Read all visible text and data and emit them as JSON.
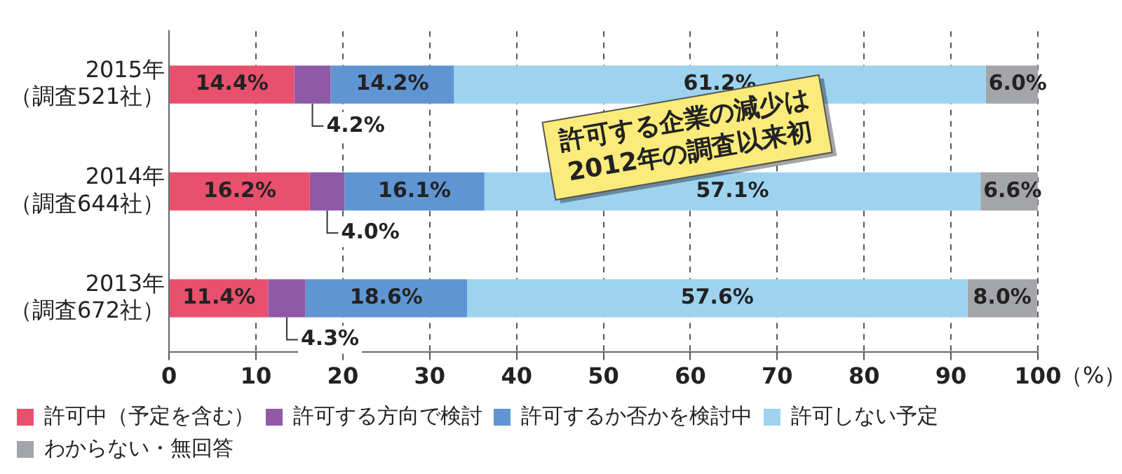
{
  "chart_data": {
    "type": "bar",
    "orientation": "horizontal",
    "stacked": true,
    "categories": [
      "2015年（調査521社）",
      "2014年（調査644社）",
      "2013年（調査672社）"
    ],
    "series": [
      {
        "name": "許可中（予定を含む）",
        "color": "#e8506e",
        "values": [
          14.4,
          16.2,
          11.4
        ],
        "value_labels": [
          "14.4%",
          "16.2%",
          "11.4%"
        ]
      },
      {
        "name": "許可する方向で検討",
        "color": "#8e5aa8",
        "values": [
          4.2,
          4.0,
          4.3
        ],
        "value_labels": [
          "4.2%",
          "4.0%",
          "4.3%"
        ]
      },
      {
        "name": "許可するか否かを検討中",
        "color": "#5f95d2",
        "values": [
          14.2,
          16.1,
          18.6
        ],
        "value_labels": [
          "14.2%",
          "16.1%",
          "18.6%"
        ]
      },
      {
        "name": "許可しない予定",
        "color": "#9dd3ef",
        "values": [
          61.2,
          57.1,
          57.6
        ],
        "value_labels": [
          "61.2%",
          "57.1%",
          "57.6%"
        ]
      },
      {
        "name": "わからない・無回答",
        "color": "#a3a5a8",
        "values": [
          6.0,
          6.6,
          8.0
        ],
        "value_labels": [
          "6.0%",
          "6.6%",
          "8.0%"
        ]
      }
    ],
    "xlim": [
      0,
      100
    ],
    "xticks": [
      0,
      10,
      20,
      30,
      40,
      50,
      60,
      70,
      80,
      90,
      100
    ],
    "xlabel": "（%）",
    "grid": "x",
    "legend": "bottom",
    "annotations": [
      "許可する企業の減少は\n2012年の調査以来初"
    ]
  }
}
